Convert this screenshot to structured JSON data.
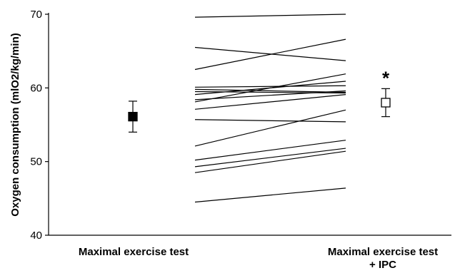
{
  "chart_data": {
    "type": "scatter",
    "title": "",
    "ylabel": "Oxygen consumption (mlO2/kg/min)",
    "xlabel": "",
    "ylim": [
      40,
      70
    ],
    "yticks": [
      40,
      50,
      60,
      70
    ],
    "grid": false,
    "categories": [
      "Maximal exercise test",
      "Maximal exercise test\n+ IPC"
    ],
    "category_lines": [
      "Maximal exercise test",
      "Maximal exercise test",
      "+ IPC"
    ],
    "series": [
      {
        "summary": "mean ± SD",
        "values": [
          {
            "mean": 56.1,
            "sd": 2.1
          },
          {
            "mean": 58.0,
            "sd": 1.9
          }
        ],
        "marker_fill": [
          "#000000",
          "#ffffff"
        ],
        "annotation_on_second": "*"
      }
    ],
    "individual_pairs": [
      [
        69.6,
        70.0
      ],
      [
        65.5,
        63.7
      ],
      [
        62.5,
        66.6
      ],
      [
        60.1,
        60.3
      ],
      [
        59.8,
        59.4
      ],
      [
        59.5,
        59.3
      ],
      [
        59.1,
        60.9
      ],
      [
        58.4,
        59.6
      ],
      [
        58.1,
        61.9
      ],
      [
        57.1,
        59.1
      ],
      [
        55.7,
        55.4
      ],
      [
        52.1,
        57.0
      ],
      [
        50.2,
        52.9
      ],
      [
        49.3,
        51.8
      ],
      [
        48.5,
        51.4
      ],
      [
        44.5,
        46.4
      ]
    ]
  }
}
